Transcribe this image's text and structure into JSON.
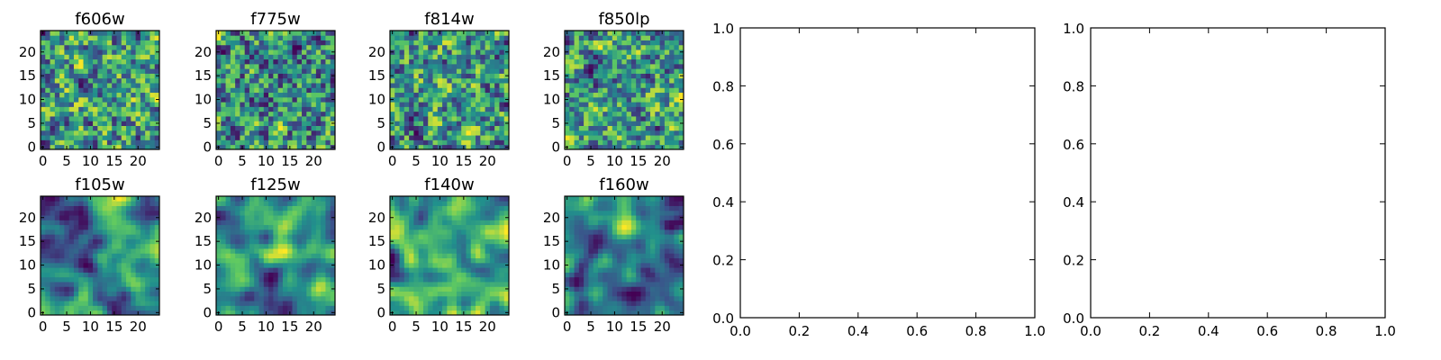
{
  "chart_data": [
    {
      "type": "heatmap",
      "title": "f606w",
      "colormap": "viridis",
      "grid_size": 25,
      "seed": 606,
      "blobs": 0.55,
      "xticks": [
        "0",
        "5",
        "10",
        "15",
        "20"
      ],
      "yticks": [
        "0",
        "5",
        "10",
        "15",
        "20"
      ]
    },
    {
      "type": "heatmap",
      "title": "f775w",
      "colormap": "viridis",
      "grid_size": 25,
      "seed": 775,
      "blobs": 0.55,
      "xticks": [
        "0",
        "5",
        "10",
        "15",
        "20"
      ],
      "yticks": [
        "0",
        "5",
        "10",
        "15",
        "20"
      ]
    },
    {
      "type": "heatmap",
      "title": "f814w",
      "colormap": "viridis",
      "grid_size": 25,
      "seed": 814,
      "blobs": 0.55,
      "xticks": [
        "0",
        "5",
        "10",
        "15",
        "20"
      ],
      "yticks": [
        "0",
        "5",
        "10",
        "15",
        "20"
      ]
    },
    {
      "type": "heatmap",
      "title": "f850lp",
      "colormap": "viridis",
      "grid_size": 25,
      "seed": 850,
      "blobs": 0.5,
      "xticks": [
        "0",
        "5",
        "10",
        "15",
        "20"
      ],
      "yticks": [
        "0",
        "5",
        "10",
        "15",
        "20"
      ]
    },
    {
      "type": "heatmap",
      "title": "f105w",
      "colormap": "viridis",
      "grid_size": 25,
      "seed": 105,
      "blobs": 0.2,
      "xticks": [
        "0",
        "5",
        "10",
        "15",
        "20"
      ],
      "yticks": [
        "0",
        "5",
        "10",
        "15",
        "20"
      ]
    },
    {
      "type": "heatmap",
      "title": "f125w",
      "colormap": "viridis",
      "grid_size": 25,
      "seed": 125,
      "blobs": 0.2,
      "xticks": [
        "0",
        "5",
        "10",
        "15",
        "20"
      ],
      "yticks": [
        "0",
        "5",
        "10",
        "15",
        "20"
      ]
    },
    {
      "type": "heatmap",
      "title": "f140w",
      "colormap": "viridis",
      "grid_size": 25,
      "seed": 140,
      "blobs": 0.2,
      "xticks": [
        "0",
        "5",
        "10",
        "15",
        "20"
      ],
      "yticks": [
        "0",
        "5",
        "10",
        "15",
        "20"
      ]
    },
    {
      "type": "heatmap",
      "title": "f160w",
      "colormap": "viridis",
      "grid_size": 25,
      "seed": 160,
      "blobs": 0.2,
      "xticks": [
        "0",
        "5",
        "10",
        "15",
        "20"
      ],
      "yticks": [
        "0",
        "5",
        "10",
        "15",
        "20"
      ]
    },
    {
      "type": "empty",
      "title": "",
      "xlim": [
        0,
        1
      ],
      "ylim": [
        0,
        1
      ],
      "xticks": [
        "0.0",
        "0.2",
        "0.4",
        "0.6",
        "0.8",
        "1.0"
      ],
      "yticks": [
        "0.0",
        "0.2",
        "0.4",
        "0.6",
        "0.8",
        "1.0"
      ]
    },
    {
      "type": "empty",
      "title": "",
      "xlim": [
        0,
        1
      ],
      "ylim": [
        0,
        1
      ],
      "xticks": [
        "0.0",
        "0.2",
        "0.4",
        "0.6",
        "0.8",
        "1.0"
      ],
      "yticks": [
        "0.0",
        "0.2",
        "0.4",
        "0.6",
        "0.8",
        "1.0"
      ]
    }
  ],
  "colors": {
    "viridis": [
      "#440154",
      "#3b528b",
      "#21918c",
      "#5ec962",
      "#fde725"
    ]
  }
}
